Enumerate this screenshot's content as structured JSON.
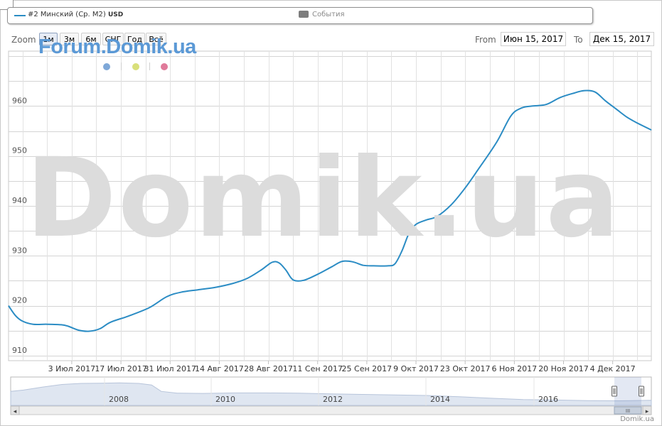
{
  "legend": {
    "series_label": "#2 Минский (Ср. М2)",
    "series_unit": "USD",
    "events_label": "События",
    "series_color": "#2b8cc4",
    "events_color": "#7d7d7d"
  },
  "range_selector": {
    "zoom_label": "Zoom",
    "buttons": [
      "1м",
      "3м",
      "6м",
      "СНГ",
      "Год",
      "Всё"
    ],
    "active_button": "1м",
    "from_label": "From",
    "from_value": "Июн 15, 2017",
    "to_label": "To",
    "to_value": "Дек 15, 2017"
  },
  "branding": {
    "forum_text": "Forum.Domik.ua",
    "watermark_text": "Domik.ua",
    "credit_text": "Domik.ua",
    "dot_colors": [
      "#7fa8d8",
      "#d9e07a",
      "#e07a9a"
    ]
  },
  "chart_data": {
    "type": "line",
    "title": "",
    "xlabel": "",
    "ylabel": "",
    "x_tick_labels": [
      "3 Июл 2017",
      "17 Июл 2017",
      "31 Июл 2017",
      "14 Авг 2017",
      "28 Авг 2017",
      "11 Сен 2017",
      "25 Сен 2017",
      "9 Окт 2017",
      "23 Окт 2017",
      "6 Ноя 2017",
      "20 Ноя 2017",
      "4 Дек 2017"
    ],
    "y_tick_labels": [
      "910",
      "920",
      "930",
      "940",
      "950",
      "960"
    ],
    "ylim": [
      909,
      971
    ],
    "xlim": [
      "2017-06-15",
      "2017-12-15"
    ],
    "grid": true,
    "series": [
      {
        "name": "#2 Минский (Ср. М2)",
        "color": "#2b8cc4",
        "points": [
          [
            "2017-06-15",
            920.0
          ],
          [
            "2017-06-17",
            918.0
          ],
          [
            "2017-06-19",
            916.9
          ],
          [
            "2017-06-22",
            916.3
          ],
          [
            "2017-06-26",
            916.3
          ],
          [
            "2017-06-30",
            916.2
          ],
          [
            "2017-07-02",
            915.9
          ],
          [
            "2017-07-05",
            915.1
          ],
          [
            "2017-07-08",
            914.9
          ],
          [
            "2017-07-11",
            915.4
          ],
          [
            "2017-07-14",
            916.7
          ],
          [
            "2017-07-19",
            917.9
          ],
          [
            "2017-07-25",
            919.6
          ],
          [
            "2017-07-30",
            921.8
          ],
          [
            "2017-08-03",
            922.7
          ],
          [
            "2017-08-08",
            923.2
          ],
          [
            "2017-08-13",
            923.7
          ],
          [
            "2017-08-18",
            924.5
          ],
          [
            "2017-08-22",
            925.5
          ],
          [
            "2017-08-26",
            927.2
          ],
          [
            "2017-08-29",
            928.7
          ],
          [
            "2017-08-31",
            928.6
          ],
          [
            "2017-09-02",
            927.1
          ],
          [
            "2017-09-04",
            925.2
          ],
          [
            "2017-09-07",
            925.1
          ],
          [
            "2017-09-11",
            926.3
          ],
          [
            "2017-09-15",
            927.8
          ],
          [
            "2017-09-18",
            928.9
          ],
          [
            "2017-09-21",
            928.8
          ],
          [
            "2017-09-24",
            928.1
          ],
          [
            "2017-09-27",
            928.0
          ],
          [
            "2017-10-01",
            928.0
          ],
          [
            "2017-10-03",
            928.4
          ],
          [
            "2017-10-05",
            931.0
          ],
          [
            "2017-10-07",
            934.5
          ],
          [
            "2017-10-09",
            936.3
          ],
          [
            "2017-10-12",
            937.2
          ],
          [
            "2017-10-15",
            937.9
          ],
          [
            "2017-10-19",
            940.2
          ],
          [
            "2017-10-23",
            943.6
          ],
          [
            "2017-10-27",
            947.6
          ],
          [
            "2017-11-01",
            952.8
          ],
          [
            "2017-11-05",
            958.0
          ],
          [
            "2017-11-08",
            959.6
          ],
          [
            "2017-11-11",
            960.0
          ],
          [
            "2017-11-15",
            960.3
          ],
          [
            "2017-11-19",
            961.7
          ],
          [
            "2017-11-23",
            962.6
          ],
          [
            "2017-11-26",
            963.1
          ],
          [
            "2017-11-29",
            962.8
          ],
          [
            "2017-12-02",
            961.0
          ],
          [
            "2017-12-05",
            959.4
          ],
          [
            "2017-12-08",
            957.8
          ],
          [
            "2017-12-11",
            956.6
          ],
          [
            "2017-12-15",
            955.2
          ]
        ]
      }
    ]
  },
  "navigator": {
    "year_labels": [
      "2008",
      "2010",
      "2012",
      "2014",
      "2016"
    ],
    "scroll_left_arrow": "◂",
    "scroll_right_arrow": "▸",
    "grip_glyph": "III"
  }
}
